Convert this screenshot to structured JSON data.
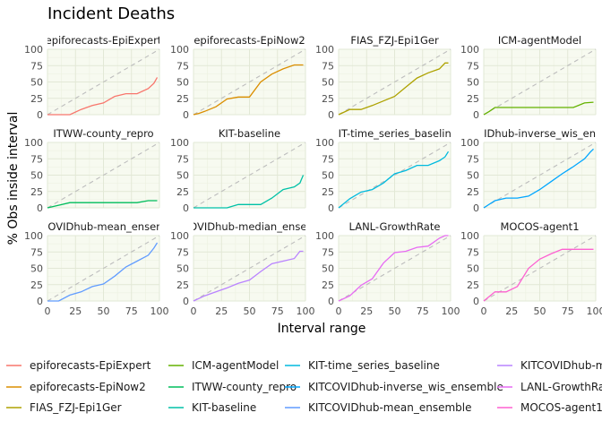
{
  "chart_data": {
    "type": "line",
    "title": "Incident Deaths",
    "xlabel": "Interval range",
    "ylabel": "% Obs inside interval",
    "xlim": [
      0,
      100
    ],
    "ylim": [
      0,
      100
    ],
    "x_ticks": [
      0,
      25,
      50,
      75,
      100
    ],
    "y_ticks": [
      0,
      25,
      50,
      75,
      100
    ],
    "grid": true,
    "reference_line": "y = x (dashed grey)",
    "legend_position": "bottom",
    "panels": [
      {
        "name": "epiforecasts-EpiExpert",
        "strip_text": "epiforecasts-EpiExpert",
        "color": "#F8766D",
        "x": [
          0,
          10,
          20,
          30,
          40,
          50,
          60,
          70,
          80,
          90,
          95,
          98
        ],
        "y": [
          0,
          0,
          0,
          8,
          14,
          18,
          28,
          32,
          32,
          40,
          48,
          57
        ]
      },
      {
        "name": "epiforecasts-EpiNow2",
        "strip_text": "epiforecasts-EpiNow2",
        "color": "#DB8E00",
        "x": [
          0,
          5,
          10,
          20,
          30,
          40,
          50,
          60,
          70,
          80,
          90,
          95,
          98
        ],
        "y": [
          0,
          2,
          5,
          12,
          24,
          27,
          27,
          50,
          62,
          70,
          76,
          76,
          76
        ]
      },
      {
        "name": "FIAS_FZJ-Epi1Ger",
        "strip_text": "FIAS_FZJ-Epi1Ger",
        "color": "#AEA200",
        "x": [
          0,
          10,
          20,
          30,
          40,
          50,
          60,
          70,
          80,
          90,
          95,
          98
        ],
        "y": [
          0,
          8,
          8,
          14,
          21,
          28,
          42,
          56,
          64,
          70,
          79,
          79
        ]
      },
      {
        "name": "ICM-agentModel",
        "strip_text": "ICM-agentModel",
        "color": "#64B200",
        "x": [
          0,
          5,
          10,
          20,
          30,
          40,
          50,
          60,
          70,
          80,
          90,
          98
        ],
        "y": [
          0,
          5,
          11,
          11,
          11,
          11,
          11,
          11,
          11,
          11,
          18,
          19
        ]
      },
      {
        "name": "ITWW-county_repro",
        "strip_text": "ITWW-county_repro",
        "color": "#00BD5C",
        "x": [
          0,
          10,
          20,
          30,
          40,
          50,
          60,
          70,
          80,
          90,
          98
        ],
        "y": [
          0,
          4,
          8,
          8,
          8,
          8,
          8,
          8,
          8,
          11,
          11
        ]
      },
      {
        "name": "KIT-baseline",
        "strip_text": "KIT-baseline",
        "color": "#00C1A7",
        "x": [
          0,
          10,
          20,
          30,
          40,
          50,
          60,
          70,
          80,
          90,
          95,
          98
        ],
        "y": [
          0,
          0,
          0,
          0,
          5,
          5,
          5,
          15,
          28,
          32,
          38,
          50
        ]
      },
      {
        "name": "KIT-time_series_baseline",
        "strip_text": "KIT-time_series_baseline",
        "color": "#00BADE",
        "x": [
          0,
          10,
          20,
          30,
          40,
          50,
          60,
          70,
          80,
          90,
          95,
          98
        ],
        "y": [
          0,
          14,
          24,
          28,
          38,
          52,
          57,
          65,
          65,
          72,
          78,
          86
        ]
      },
      {
        "name": "KITCOVIDhub-inverse_wis_ensemble",
        "strip_text": "KITCOVIDhub-inverse_wis_ensemble",
        "color": "#00A6FF",
        "x": [
          0,
          10,
          20,
          30,
          40,
          50,
          60,
          70,
          80,
          90,
          95,
          98
        ],
        "y": [
          0,
          11,
          15,
          15,
          18,
          28,
          40,
          52,
          63,
          75,
          85,
          90
        ]
      },
      {
        "name": "KITCOVIDhub-mean_ensemble",
        "strip_text": "KITCOVIDhub-mean_ensemble",
        "color": "#619CFF",
        "x": [
          0,
          10,
          20,
          30,
          40,
          50,
          60,
          70,
          80,
          90,
          95,
          98
        ],
        "y": [
          0,
          0,
          9,
          14,
          22,
          26,
          38,
          52,
          61,
          70,
          81,
          89
        ]
      },
      {
        "name": "KITCOVIDhub-median_ensemble",
        "strip_text": "KITCOVIDhub-median_ensemble",
        "color": "#B983FF",
        "x": [
          0,
          10,
          20,
          30,
          40,
          50,
          60,
          70,
          80,
          90,
          95,
          98
        ],
        "y": [
          0,
          8,
          14,
          20,
          27,
          32,
          45,
          57,
          61,
          65,
          76,
          76
        ]
      },
      {
        "name": "LANL-GrowthRate",
        "strip_text": "LANL-GrowthRate",
        "color": "#E76BF3",
        "x": [
          0,
          10,
          20,
          30,
          40,
          50,
          60,
          70,
          80,
          90,
          95,
          98
        ],
        "y": [
          0,
          8,
          24,
          34,
          58,
          74,
          76,
          82,
          84,
          96,
          100,
          100
        ]
      },
      {
        "name": "MOCOS-agent1",
        "strip_text": "MOCOS-agent1",
        "color": "#FD61D1",
        "x": [
          0,
          10,
          20,
          30,
          40,
          50,
          60,
          70,
          80,
          90,
          98
        ],
        "y": [
          0,
          14,
          14,
          22,
          50,
          64,
          72,
          79,
          79,
          79,
          79
        ]
      }
    ]
  }
}
